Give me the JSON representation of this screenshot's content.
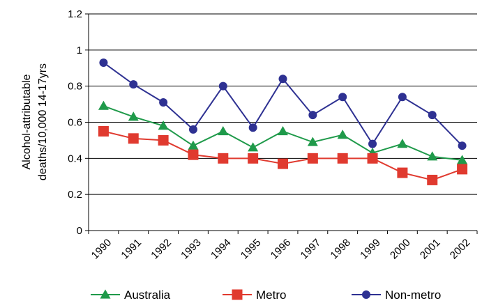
{
  "chart_data": {
    "type": "line",
    "title": "",
    "xlabel": "",
    "ylabel_lines": [
      "Alcohol-attributable",
      "deaths/10,000 14-17yrs"
    ],
    "ylim": [
      0,
      1.2
    ],
    "yticks": [
      "0",
      "0.2",
      "0.4",
      "0.6",
      "0.8",
      "1",
      "1.2"
    ],
    "ytick_values": [
      0,
      0.2,
      0.4,
      0.6,
      0.8,
      1.0,
      1.2
    ],
    "grid": "horizontal",
    "legend_position": "bottom",
    "categories": [
      "1990",
      "1991",
      "1992",
      "1993",
      "1994",
      "1995",
      "1996",
      "1997",
      "1998",
      "1999",
      "2000",
      "2001",
      "2002"
    ],
    "series": [
      {
        "name": "Australia",
        "color": "#1f9a4a",
        "marker": "triangle",
        "values": [
          0.69,
          0.63,
          0.58,
          0.47,
          0.55,
          0.46,
          0.55,
          0.49,
          0.53,
          0.43,
          0.48,
          0.41,
          0.39
        ]
      },
      {
        "name": "Metro",
        "color": "#e03a2f",
        "marker": "square",
        "values": [
          0.55,
          0.51,
          0.5,
          0.42,
          0.4,
          0.4,
          0.37,
          0.4,
          0.4,
          0.4,
          0.32,
          0.28,
          0.34
        ]
      },
      {
        "name": "Non-metro",
        "color": "#2e3192",
        "marker": "circle",
        "values": [
          0.93,
          0.81,
          0.71,
          0.56,
          0.8,
          0.57,
          0.84,
          0.64,
          0.74,
          0.48,
          0.74,
          0.64,
          0.47
        ]
      }
    ]
  }
}
